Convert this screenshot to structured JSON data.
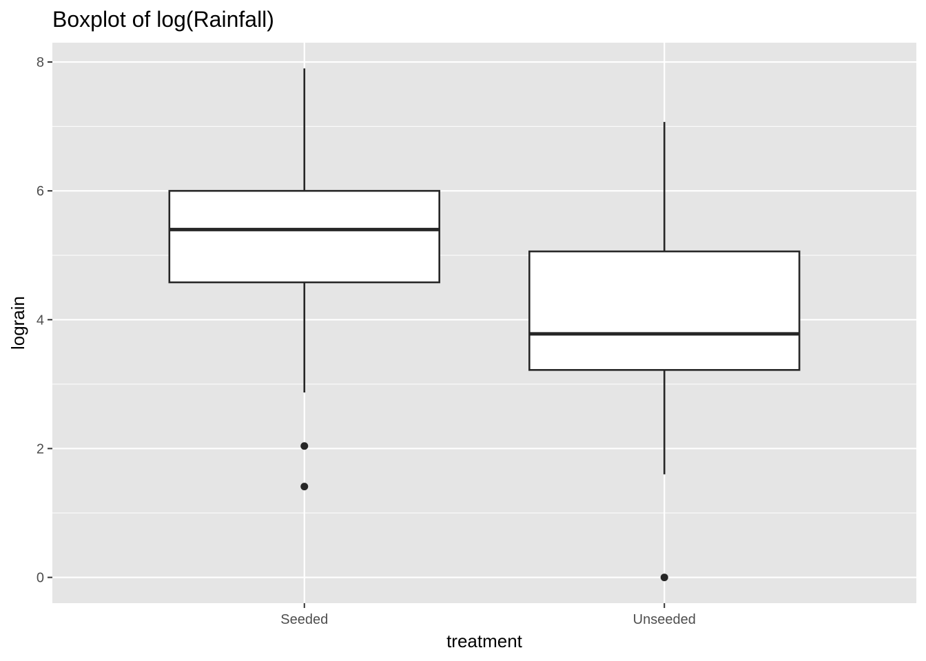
{
  "chart_data": {
    "type": "boxplot",
    "title": "Boxplot of log(Rainfall)",
    "xlabel": "treatment",
    "ylabel": "lograin",
    "categories": [
      "Seeded",
      "Unseeded"
    ],
    "ylim": [
      -0.4,
      8.3
    ],
    "yticks": [
      0,
      2,
      4,
      6,
      8
    ],
    "grid": true,
    "boxes": [
      {
        "category": "Seeded",
        "whisker_low": 2.87,
        "q1": 4.58,
        "median": 5.4,
        "q3": 6.0,
        "whisker_high": 7.9,
        "outliers": [
          2.04,
          1.41
        ]
      },
      {
        "category": "Unseeded",
        "whisker_low": 1.6,
        "q1": 3.22,
        "median": 3.78,
        "q3": 5.06,
        "whisker_high": 7.07,
        "outliers": [
          0.0
        ]
      }
    ],
    "colors": {
      "panel": "#e5e5e5",
      "grid": "#ffffff",
      "box_fill": "#ffffff",
      "box_stroke": "#262626",
      "point": "#262626"
    }
  }
}
